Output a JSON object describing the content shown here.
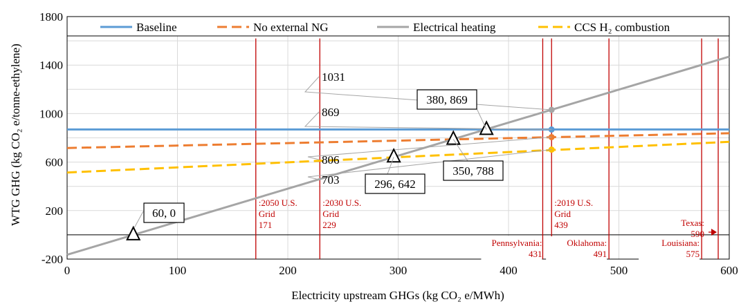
{
  "chart_data": {
    "type": "line",
    "xlabel": "Electricity upstream GHGs (kg CO₂ e/MWh)",
    "ylabel": "WTG GHG (kg CO₂ e/tonne-ethylene)",
    "xlim": [
      0,
      600
    ],
    "ylim": [
      -200,
      1800
    ],
    "x_ticks": [
      "0",
      "100",
      "200",
      "300",
      "400",
      "500",
      "600"
    ],
    "y_ticks": [
      "-200",
      "200",
      "600",
      "1000",
      "1400",
      "1800"
    ],
    "grid": true,
    "legend_position": "top",
    "series": [
      {
        "name": "Baseline",
        "color": "#5b9bd5",
        "style": "solid",
        "x": [
          0,
          600
        ],
        "y": [
          869,
          869
        ]
      },
      {
        "name": "No external NG",
        "color": "#ed7d31",
        "style": "dashed",
        "x": [
          0,
          600
        ],
        "y": [
          716,
          838
        ]
      },
      {
        "name": "Electrical heating",
        "color": "#a5a5a5",
        "style": "solid",
        "x": [
          0,
          600
        ],
        "y": [
          -164,
          1470
        ]
      },
      {
        "name": "CCS H₂ combustion",
        "color": "#ffc000",
        "style": "dashed",
        "x": [
          0,
          600
        ],
        "y": [
          514,
          767
        ]
      }
    ],
    "points_at_439": [
      {
        "series": "Electrical heating",
        "x": 439,
        "y": 1031,
        "label": "1031"
      },
      {
        "series": "Baseline",
        "x": 439,
        "y": 869,
        "label": "869"
      },
      {
        "series": "No external NG",
        "x": 439,
        "y": 806,
        "label": "806"
      },
      {
        "series": "CCS H₂ combustion",
        "x": 439,
        "y": 703,
        "label": "703"
      }
    ],
    "intersections": [
      {
        "x": 60,
        "y": 0,
        "label": "60, 0",
        "boxed": true
      },
      {
        "x": 296,
        "y": 642,
        "label": "296, 642",
        "boxed": true
      },
      {
        "x": 350,
        "y": 788,
        "label": "350, 788",
        "boxed": true
      },
      {
        "x": 380,
        "y": 869,
        "label": "380, 869",
        "boxed": true
      }
    ],
    "zero_line": 0,
    "grid_markers": [
      {
        "x": 171,
        "lines": [
          ":2050 U.S.",
          "Grid",
          "171"
        ]
      },
      {
        "x": 229,
        "lines": [
          ":2030 U.S.",
          "Grid",
          "229"
        ]
      },
      {
        "x": 439,
        "lines": [
          ":2019 U.S.",
          "Grid",
          "439"
        ]
      }
    ],
    "state_markers": [
      {
        "x": 431,
        "lines": [
          "Pennsylvania:",
          "431"
        ]
      },
      {
        "x": 491,
        "lines": [
          "Oklahoma:",
          "491"
        ]
      },
      {
        "x": 575,
        "lines": [
          "Louisiana:",
          "575"
        ]
      },
      {
        "x": 590,
        "lines": [
          "Texas:",
          "590"
        ]
      }
    ],
    "marker_color": "#c00000"
  }
}
